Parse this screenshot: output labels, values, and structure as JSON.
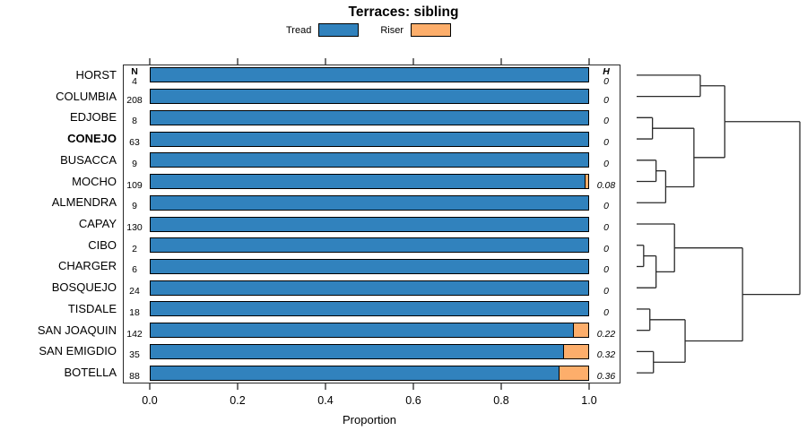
{
  "chart_data": {
    "type": "bar",
    "orientation": "horizontal-stacked",
    "title": "Terraces: sibling",
    "xlabel": "Proportion",
    "xlim": [
      0,
      1
    ],
    "xticks": [
      0.0,
      0.2,
      0.4,
      0.6,
      0.8,
      1.0
    ],
    "xtick_labels": [
      "0.0",
      "0.2",
      "0.4",
      "0.6",
      "0.8",
      "1.0"
    ],
    "grid": "off",
    "legend": {
      "position": "top",
      "entries": [
        {
          "label": "Tread",
          "color": "#3182bd"
        },
        {
          "label": "Riser",
          "color": "#fdae6b"
        }
      ]
    },
    "columns": {
      "n_header": "N",
      "h_header": "H"
    },
    "rows": [
      {
        "label": "HORST",
        "bold": false,
        "n": "4",
        "h": "0",
        "tread": 1.0,
        "riser": 0.0
      },
      {
        "label": "COLUMBIA",
        "bold": false,
        "n": "208",
        "h": "0",
        "tread": 1.0,
        "riser": 0.0
      },
      {
        "label": "EDJOBE",
        "bold": false,
        "n": "8",
        "h": "0",
        "tread": 1.0,
        "riser": 0.0
      },
      {
        "label": "CONEJO",
        "bold": true,
        "n": "63",
        "h": "0",
        "tread": 1.0,
        "riser": 0.0
      },
      {
        "label": "BUSACCA",
        "bold": false,
        "n": "9",
        "h": "0",
        "tread": 1.0,
        "riser": 0.0
      },
      {
        "label": "MOCHO",
        "bold": false,
        "n": "109",
        "h": "0.08",
        "tread": 0.991,
        "riser": 0.009
      },
      {
        "label": "ALMENDRA",
        "bold": false,
        "n": "9",
        "h": "0",
        "tread": 1.0,
        "riser": 0.0
      },
      {
        "label": "CAPAY",
        "bold": false,
        "n": "130",
        "h": "0",
        "tread": 1.0,
        "riser": 0.0
      },
      {
        "label": "CIBO",
        "bold": false,
        "n": "2",
        "h": "0",
        "tread": 1.0,
        "riser": 0.0
      },
      {
        "label": "CHARGER",
        "bold": false,
        "n": "6",
        "h": "0",
        "tread": 1.0,
        "riser": 0.0
      },
      {
        "label": "BOSQUEJO",
        "bold": false,
        "n": "24",
        "h": "0",
        "tread": 1.0,
        "riser": 0.0
      },
      {
        "label": "TISDALE",
        "bold": false,
        "n": "18",
        "h": "0",
        "tread": 1.0,
        "riser": 0.0
      },
      {
        "label": "SAN JOAQUIN",
        "bold": false,
        "n": "142",
        "h": "0.22",
        "tread": 0.965,
        "riser": 0.035
      },
      {
        "label": "SAN EMIGDIO",
        "bold": false,
        "n": "35",
        "h": "0.32",
        "tread": 0.943,
        "riser": 0.057
      },
      {
        "label": "BOTELLA",
        "bold": false,
        "n": "88",
        "h": "0.36",
        "tread": 0.932,
        "riser": 0.068
      }
    ],
    "bar_colors": {
      "tread": "#3182bd",
      "riser": "#fdae6b",
      "border": "#000000"
    },
    "dendrogram": {
      "height": 1.0,
      "children": [
        {
          "height": 0.54,
          "children": [
            {
              "height": 0.39,
              "children": [
                {
                  "leaf": 0
                },
                {
                  "leaf": 1
                }
              ]
            },
            {
              "height": 0.351,
              "children": [
                {
                  "height": 0.097,
                  "children": [
                    {
                      "leaf": 2
                    },
                    {
                      "leaf": 3
                    }
                  ]
                },
                {
                  "height": 0.178,
                  "children": [
                    {
                      "height": 0.119,
                      "children": [
                        {
                          "leaf": 4
                        },
                        {
                          "leaf": 5
                        }
                      ]
                    },
                    {
                      "leaf": 6
                    }
                  ]
                }
              ]
            }
          ]
        },
        {
          "height": 0.649,
          "children": [
            {
              "height": 0.232,
              "children": [
                {
                  "leaf": 7
                },
                {
                  "height": 0.119,
                  "children": [
                    {
                      "height": 0.043,
                      "children": [
                        {
                          "leaf": 8
                        },
                        {
                          "leaf": 9
                        }
                      ]
                    },
                    {
                      "leaf": 10
                    }
                  ]
                }
              ]
            },
            {
              "height": 0.297,
              "children": [
                {
                  "height": 0.081,
                  "children": [
                    {
                      "leaf": 11
                    },
                    {
                      "leaf": 12
                    }
                  ]
                },
                {
                  "height": 0.103,
                  "children": [
                    {
                      "leaf": 13
                    },
                    {
                      "leaf": 14
                    }
                  ]
                }
              ]
            }
          ]
        }
      ]
    }
  }
}
